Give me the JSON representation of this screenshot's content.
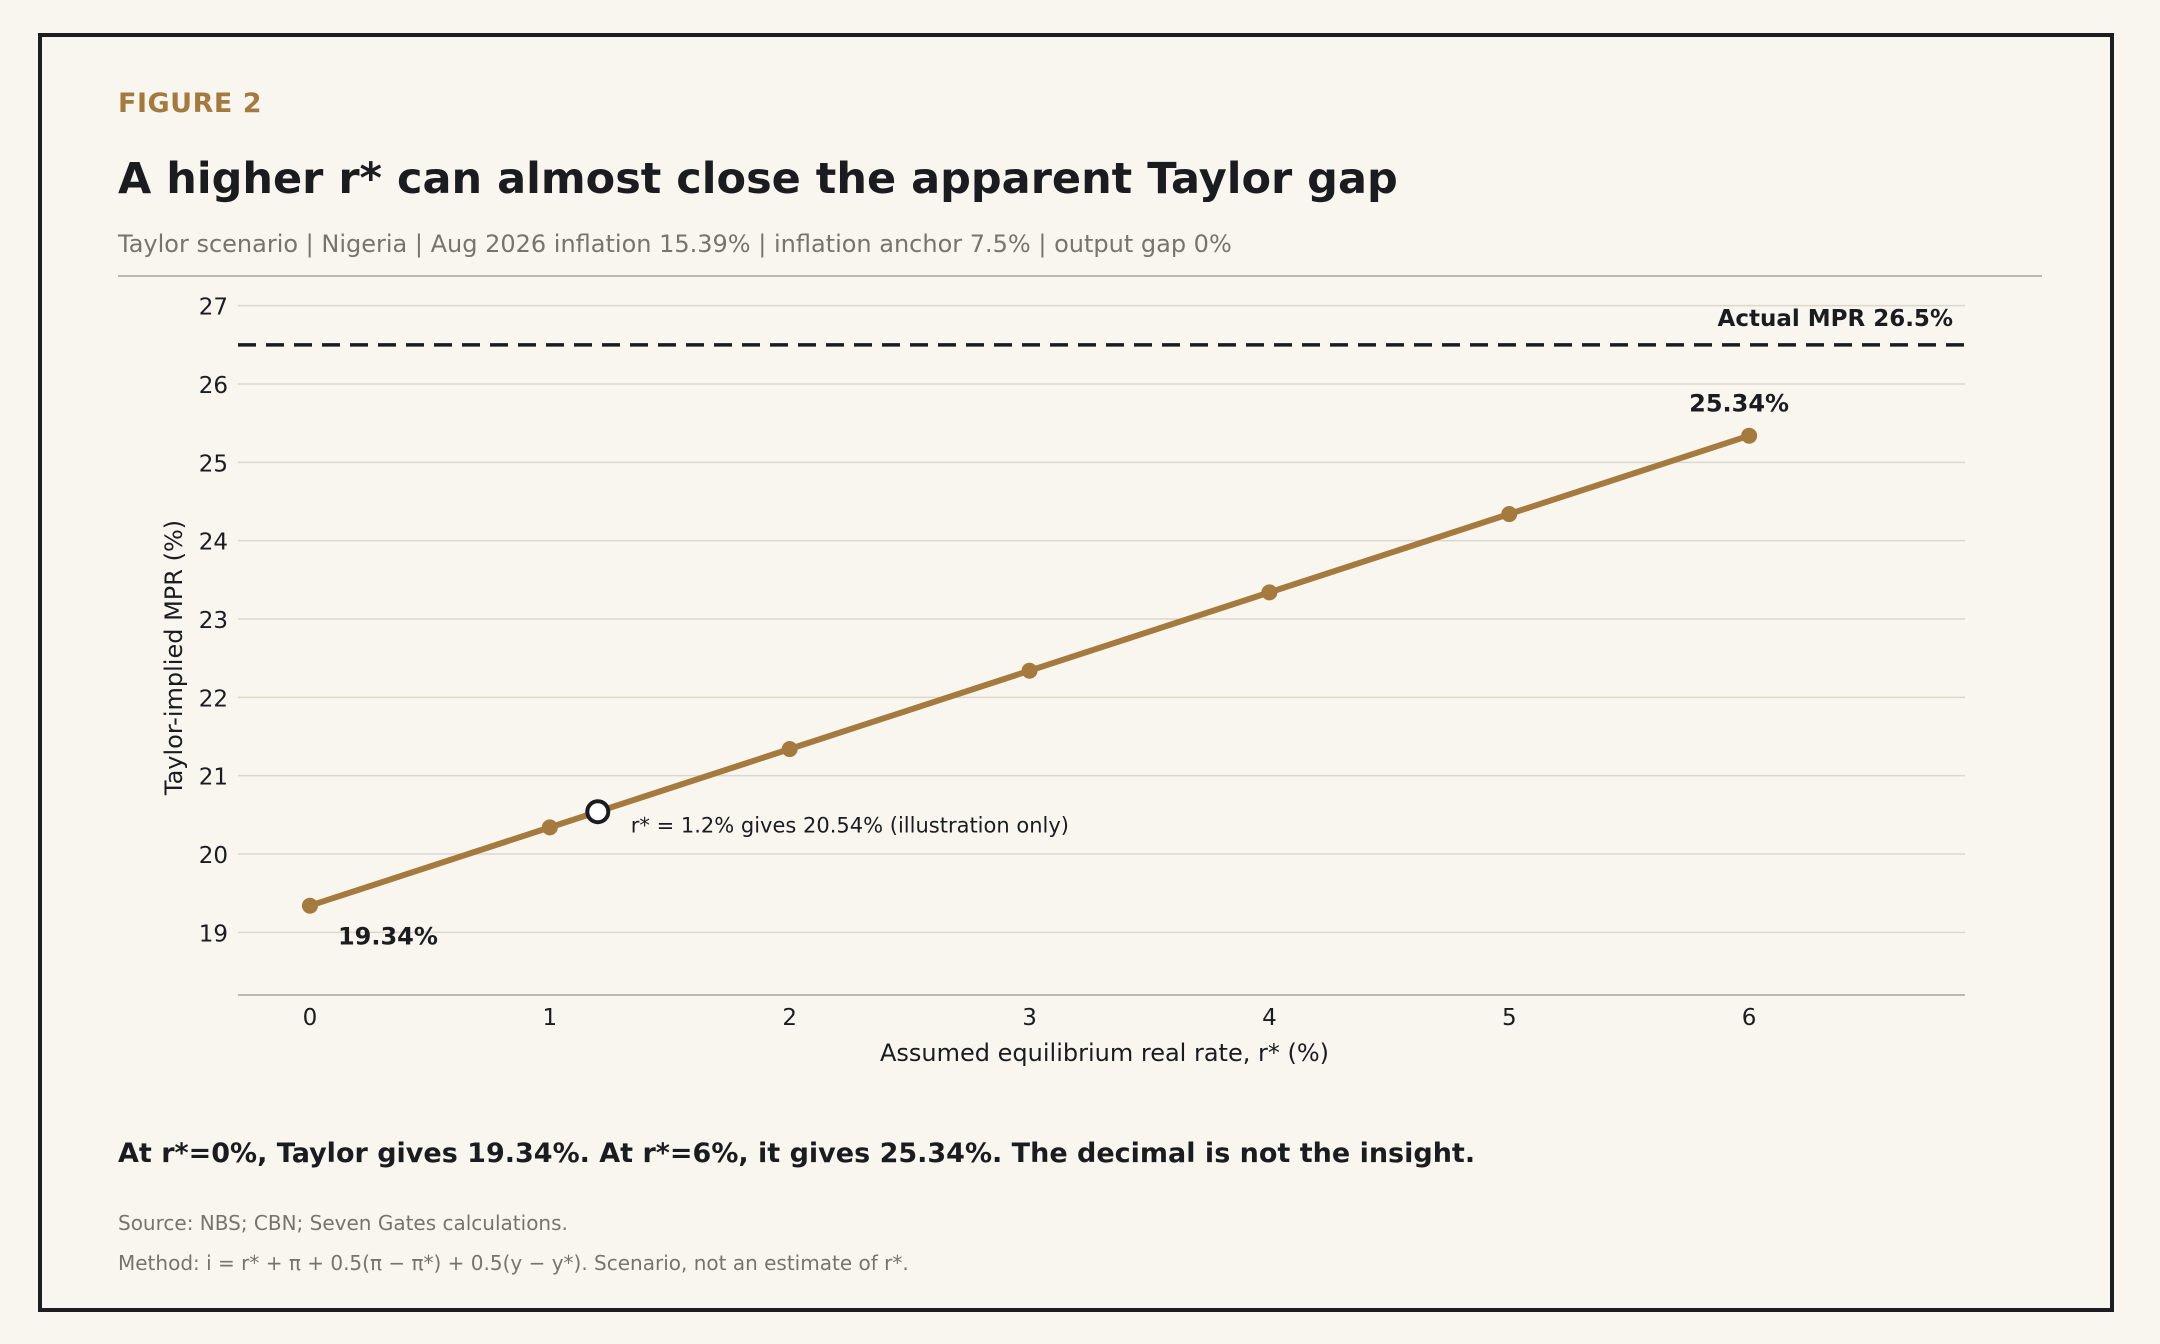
{
  "figure": {
    "label": "FIGURE 2",
    "title": "A higher r* can almost close the apparent Taylor gap",
    "subtitle": "Taylor scenario | Nigeria | Aug 2026 inflation 15.39% | inflation anchor 7.5% | output gap 0%",
    "takeaway": "At r*=0%, Taylor gives 19.34%. At r*=6%, it gives 25.34%. The decimal is not the insight.",
    "source": "Source: NBS; CBN; Seven Gates calculations.",
    "method": "Method: i = r* + π + 0.5(π − π*) + 0.5(y − y*). Scenario, not an estimate of r*."
  },
  "colors": {
    "accent": "#a57a3f",
    "text": "#1b1c20",
    "muted": "#77746f",
    "grid": "#dcd7cd",
    "reference": "#1b1c20"
  },
  "chart_data": {
    "type": "line",
    "xlabel": "Assumed equilibrium real rate, r* (%)",
    "ylabel": "Taylor-implied MPR (%)",
    "xlim": [
      -0.3,
      6.9
    ],
    "ylim": [
      18.2,
      27.2
    ],
    "x_ticks": [
      0,
      1,
      2,
      3,
      4,
      5,
      6
    ],
    "y_ticks": [
      19,
      20,
      21,
      22,
      23,
      24,
      25,
      26,
      27
    ],
    "grid": "horizontal",
    "series": [
      {
        "x": [
          0,
          1,
          2,
          3,
          4,
          5,
          6
        ],
        "y": [
          19.34,
          20.34,
          21.34,
          22.34,
          23.34,
          24.34,
          25.34
        ]
      }
    ],
    "reference_line": {
      "y": 26.5,
      "label": "Actual MPR 26.5%"
    },
    "highlight": {
      "x": 1.2,
      "y": 20.54,
      "label": "r* = 1.2% gives 20.54% (illustration only)"
    },
    "end_labels": [
      {
        "x": 0,
        "y": 19.34,
        "label": "19.34%"
      },
      {
        "x": 6,
        "y": 25.34,
        "label": "25.34%"
      }
    ]
  }
}
